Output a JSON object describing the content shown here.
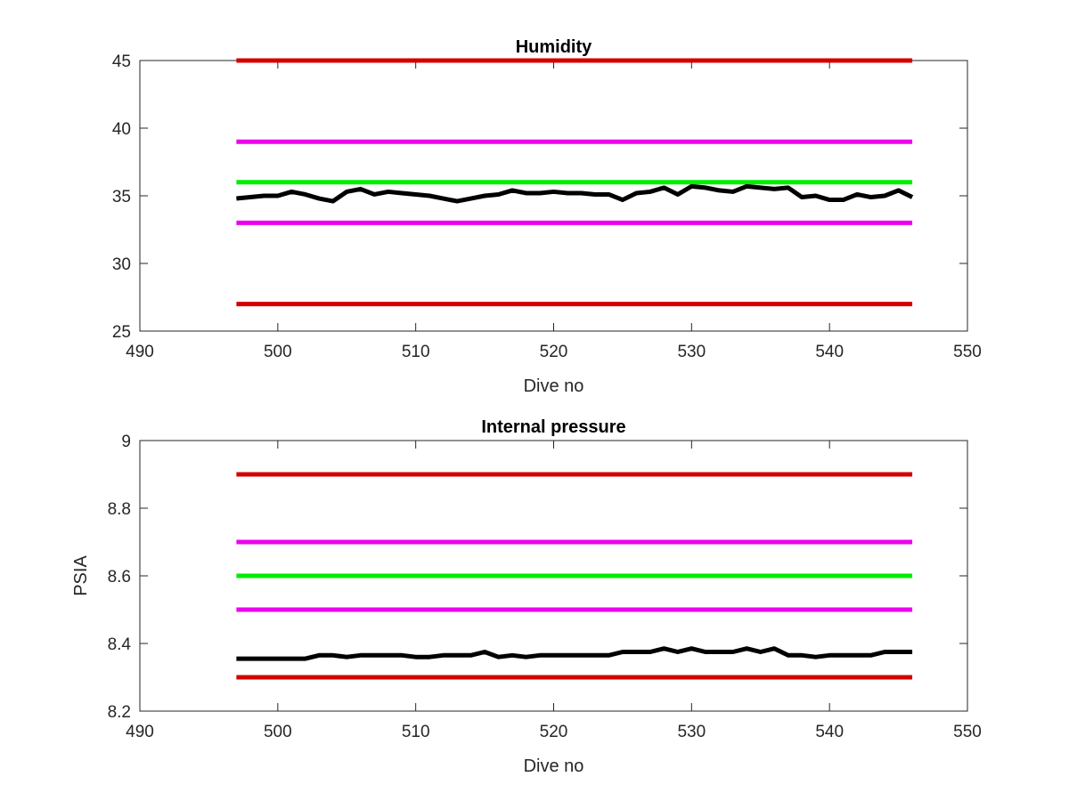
{
  "chart_data": [
    {
      "type": "line",
      "title": "Humidity",
      "xlabel": "Dive no",
      "ylabel": "",
      "xlim": [
        490,
        550
      ],
      "ylim": [
        25,
        45
      ],
      "xticks": [
        490,
        500,
        510,
        520,
        530,
        540,
        550
      ],
      "yticks": [
        25,
        30,
        35,
        40,
        45
      ],
      "grid": false,
      "legend": "none",
      "reference_lines": [
        {
          "value": 45,
          "color": "#d40000",
          "x": [
            497,
            546
          ]
        },
        {
          "value": 39,
          "color": "#ee00ee",
          "x": [
            497,
            546
          ]
        },
        {
          "value": 36,
          "color": "#00ee00",
          "x": [
            497,
            546
          ]
        },
        {
          "value": 33,
          "color": "#ee00ee",
          "x": [
            497,
            546
          ]
        },
        {
          "value": 27,
          "color": "#d40000",
          "x": [
            497,
            546
          ]
        }
      ],
      "series": [
        {
          "color": "#000000",
          "x": [
            497,
            498,
            499,
            500,
            501,
            502,
            503,
            504,
            505,
            506,
            507,
            508,
            509,
            510,
            511,
            512,
            513,
            514,
            515,
            516,
            517,
            518,
            519,
            520,
            521,
            522,
            523,
            524,
            525,
            526,
            527,
            528,
            529,
            530,
            531,
            532,
            533,
            534,
            535,
            536,
            537,
            538,
            539,
            540,
            541,
            542,
            543,
            544,
            545,
            546
          ],
          "values": [
            34.8,
            34.9,
            35.0,
            35.0,
            35.3,
            35.1,
            34.8,
            34.6,
            35.3,
            35.5,
            35.1,
            35.3,
            35.2,
            35.1,
            35.0,
            34.8,
            34.6,
            34.8,
            35.0,
            35.1,
            35.4,
            35.2,
            35.2,
            35.3,
            35.2,
            35.2,
            35.1,
            35.1,
            34.7,
            35.2,
            35.3,
            35.6,
            35.1,
            35.7,
            35.6,
            35.4,
            35.3,
            35.7,
            35.6,
            35.5,
            35.6,
            34.9,
            35.0,
            34.7,
            34.7,
            35.1,
            34.9,
            35.0,
            35.4,
            34.9
          ]
        }
      ]
    },
    {
      "type": "line",
      "title": "Internal pressure",
      "xlabel": "Dive no",
      "ylabel": "PSIA",
      "xlim": [
        490,
        550
      ],
      "ylim": [
        8.2,
        9
      ],
      "xticks": [
        490,
        500,
        510,
        520,
        530,
        540,
        550
      ],
      "yticks": [
        8.2,
        8.4,
        8.6,
        8.8,
        9
      ],
      "grid": false,
      "legend": "none",
      "reference_lines": [
        {
          "value": 8.9,
          "color": "#d40000",
          "x": [
            497,
            546
          ]
        },
        {
          "value": 8.7,
          "color": "#ee00ee",
          "x": [
            497,
            546
          ]
        },
        {
          "value": 8.6,
          "color": "#00ee00",
          "x": [
            497,
            546
          ]
        },
        {
          "value": 8.5,
          "color": "#ee00ee",
          "x": [
            497,
            546
          ]
        },
        {
          "value": 8.3,
          "color": "#d40000",
          "x": [
            497,
            546
          ]
        }
      ],
      "series": [
        {
          "color": "#000000",
          "x": [
            497,
            498,
            499,
            500,
            501,
            502,
            503,
            504,
            505,
            506,
            507,
            508,
            509,
            510,
            511,
            512,
            513,
            514,
            515,
            516,
            517,
            518,
            519,
            520,
            521,
            522,
            523,
            524,
            525,
            526,
            527,
            528,
            529,
            530,
            531,
            532,
            533,
            534,
            535,
            536,
            537,
            538,
            539,
            540,
            541,
            542,
            543,
            544,
            545,
            546
          ],
          "values": [
            8.355,
            8.355,
            8.355,
            8.355,
            8.355,
            8.355,
            8.365,
            8.365,
            8.36,
            8.365,
            8.365,
            8.365,
            8.365,
            8.36,
            8.36,
            8.365,
            8.365,
            8.365,
            8.375,
            8.36,
            8.365,
            8.36,
            8.365,
            8.365,
            8.365,
            8.365,
            8.365,
            8.365,
            8.375,
            8.375,
            8.375,
            8.385,
            8.375,
            8.385,
            8.375,
            8.375,
            8.375,
            8.385,
            8.375,
            8.385,
            8.365,
            8.365,
            8.36,
            8.365,
            8.365,
            8.365,
            8.365,
            8.375,
            8.375,
            8.375
          ]
        }
      ]
    }
  ]
}
